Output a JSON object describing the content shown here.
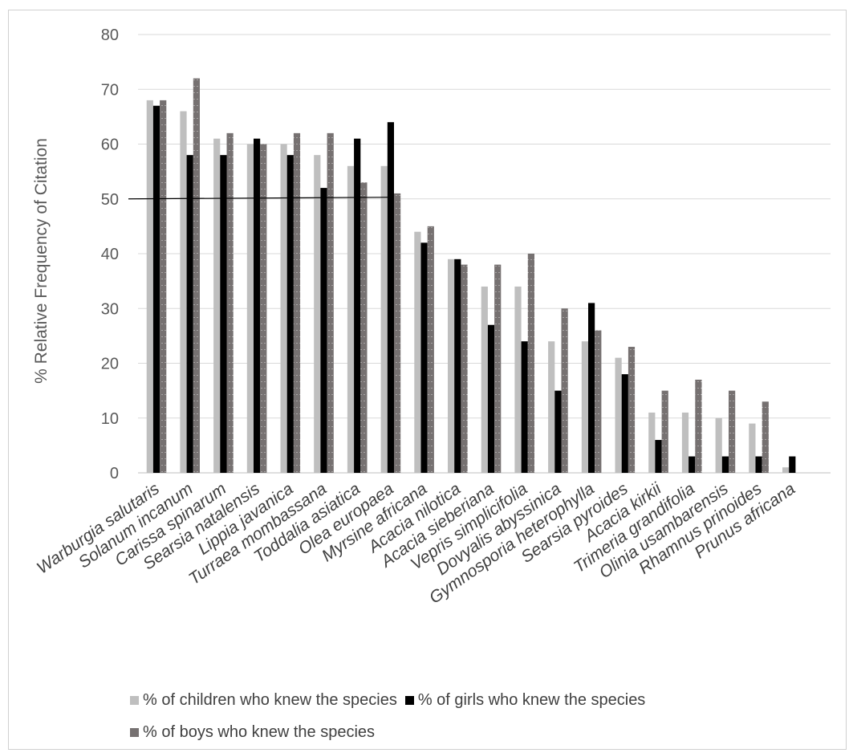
{
  "chart_data": {
    "type": "bar",
    "ylabel": "% Relative Frequency of Citation",
    "ylim": [
      0,
      80
    ],
    "yticks": [
      0,
      10,
      20,
      30,
      40,
      50,
      60,
      70,
      80
    ],
    "grid": true,
    "legend_position": "bottom",
    "categories": [
      "Warburgia salutaris",
      "Solanum incanum",
      "Carissa spinarum",
      "Searsia natalensis",
      "Lippia javanica",
      "Turraea mombassana",
      "Toddalia asiatica",
      "Olea europaea",
      "Myrsine africana",
      "Acacia nilotica",
      "Acacia sieberiana",
      "Vepris simplicifolia",
      "Dovyalis abyssinica",
      "Gymnosporia heterophylla",
      "Searsia pyroides",
      "Acacia kirkii",
      "Trimeria grandifolia",
      "Olinia usambarensis",
      "Rhamnus prinoides",
      "Prunus africana"
    ],
    "series": [
      {
        "name": "% of children who knew the species",
        "color": "#bfbfbf",
        "values": [
          68,
          66,
          61,
          60,
          60,
          58,
          56,
          56,
          44,
          39,
          34,
          34,
          24,
          24,
          21,
          11,
          11,
          10,
          9,
          1
        ]
      },
      {
        "name": "% of girls who knew the species",
        "color": "#000000",
        "values": [
          67,
          58,
          58,
          61,
          58,
          52,
          61,
          64,
          42,
          39,
          27,
          24,
          15,
          31,
          18,
          6,
          3,
          3,
          3,
          3
        ]
      },
      {
        "name": "% of boys who knew the species",
        "color": "#767171",
        "values": [
          68,
          72,
          62,
          60,
          62,
          62,
          53,
          51,
          45,
          38,
          38,
          40,
          30,
          26,
          23,
          15,
          17,
          15,
          13,
          0
        ]
      }
    ],
    "annotation_line": {
      "x_from_category": 0,
      "x_to_category": 7,
      "y_start": 50,
      "y_end": 50.3
    }
  }
}
